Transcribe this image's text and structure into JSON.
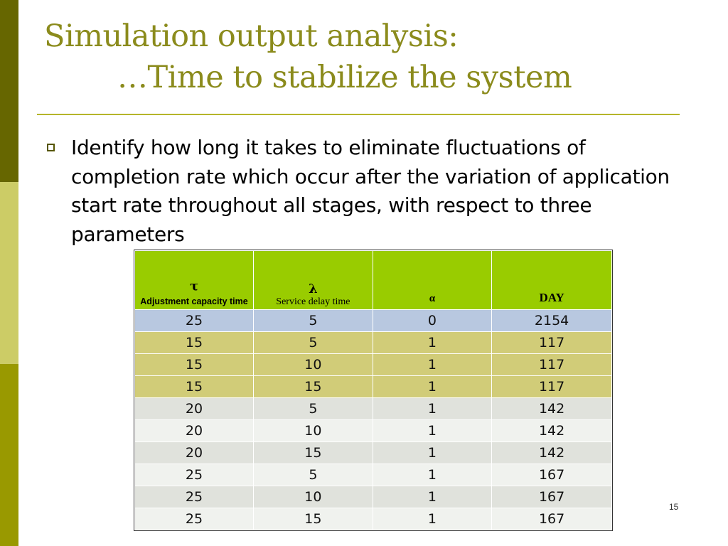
{
  "title": {
    "line1": "Simulation output analysis:",
    "line2": "…Time to stabilize the system"
  },
  "bullet": {
    "text": "Identify how long it takes to eliminate fluctuations of completion rate which occur after the variation of application start rate throughout all stages, with respect to three parameters"
  },
  "table": {
    "headers": [
      {
        "symbol": "τ",
        "label": "Adjustment capacity time"
      },
      {
        "symbol": "λ",
        "label": "Service delay time"
      },
      {
        "symbol": "",
        "label": "α"
      },
      {
        "symbol": "",
        "label": "DAY"
      }
    ],
    "rows": [
      [
        "25",
        "5",
        "0",
        "2154"
      ],
      [
        "15",
        "5",
        "1",
        "117"
      ],
      [
        "15",
        "10",
        "1",
        "117"
      ],
      [
        "15",
        "15",
        "1",
        "117"
      ],
      [
        "20",
        "5",
        "1",
        "142"
      ],
      [
        "20",
        "10",
        "1",
        "142"
      ],
      [
        "20",
        "15",
        "1",
        "142"
      ],
      [
        "25",
        "5",
        "1",
        "167"
      ],
      [
        "25",
        "10",
        "1",
        "167"
      ],
      [
        "25",
        "15",
        "1",
        "167"
      ]
    ]
  },
  "page_number": "15",
  "colors": {
    "title": "#8b8b1c",
    "header_bg": "#99cc00",
    "sidebar_dark": "#666600",
    "sidebar_light": "#cccc66",
    "sidebar_mid": "#999900"
  }
}
